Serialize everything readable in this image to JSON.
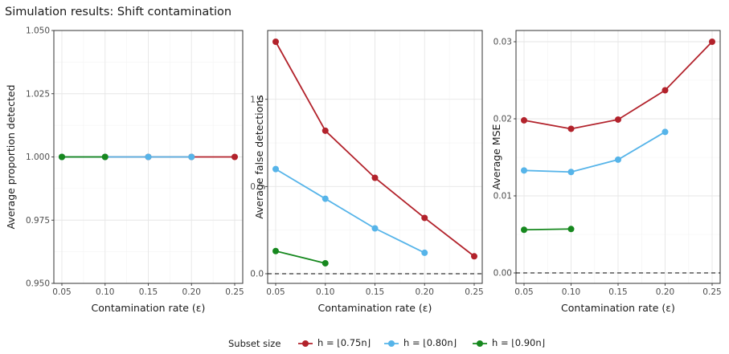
{
  "figure": {
    "title": "Simulation results: Shift contamination",
    "legend": {
      "title": "Subset size",
      "position": "bottom",
      "entries": [
        {
          "label": "h = ⌊0.75n⌋",
          "color": "#B2222B"
        },
        {
          "label": "h = ⌊0.80n⌋",
          "color": "#56B4E9"
        },
        {
          "label": "h = ⌊0.90n⌋",
          "color": "#16881E"
        }
      ]
    }
  },
  "chart_data": [
    {
      "type": "line",
      "xlabel": "Contamination rate (ε)",
      "ylabel": "Average proportion detected",
      "xlim": [
        0.05,
        0.25
      ],
      "ylim": [
        0.95,
        1.05
      ],
      "xticks": [
        0.05,
        0.1,
        0.15,
        0.2,
        0.25
      ],
      "xtick_labels": [
        "0.05",
        "0.10",
        "0.15",
        "0.20",
        "0.25"
      ],
      "yticks": [
        0.95,
        0.975,
        1.0,
        1.025,
        1.05
      ],
      "ytick_labels": [
        "0.950",
        "0.975",
        "1.000",
        "1.025",
        "1.050"
      ],
      "reference_line": null,
      "grid": true,
      "series": [
        {
          "name": "h = ⌊0.75n⌋",
          "color": "#B2222B",
          "x": [
            0.05,
            0.1,
            0.15,
            0.2,
            0.25
          ],
          "y": [
            1.0,
            1.0,
            1.0,
            1.0,
            1.0
          ]
        },
        {
          "name": "h = ⌊0.80n⌋",
          "color": "#56B4E9",
          "x": [
            0.05,
            0.1,
            0.15,
            0.2
          ],
          "y": [
            1.0,
            1.0,
            1.0,
            1.0
          ]
        },
        {
          "name": "h = ⌊0.90n⌋",
          "color": "#16881E",
          "x": [
            0.05,
            0.1
          ],
          "y": [
            1.0,
            1.0
          ]
        }
      ]
    },
    {
      "type": "line",
      "xlabel": "Contamination rate (ε)",
      "ylabel": "Average false detections",
      "xlim": [
        0.05,
        0.25
      ],
      "ylim": [
        0,
        1.33
      ],
      "xticks": [
        0.05,
        0.1,
        0.15,
        0.2,
        0.25
      ],
      "xtick_labels": [
        "0.05",
        "0.10",
        "0.15",
        "0.20",
        "0.25"
      ],
      "yticks": [
        0.0,
        0.5,
        1.0
      ],
      "ytick_labels": [
        "0.0",
        "0.5",
        "1.0"
      ],
      "reference_line": 0,
      "grid": true,
      "series": [
        {
          "name": "h = ⌊0.75n⌋",
          "color": "#B2222B",
          "x": [
            0.05,
            0.1,
            0.15,
            0.2,
            0.25
          ],
          "y": [
            1.33,
            0.82,
            0.55,
            0.32,
            0.1
          ]
        },
        {
          "name": "h = ⌊0.80n⌋",
          "color": "#56B4E9",
          "x": [
            0.05,
            0.1,
            0.15,
            0.2
          ],
          "y": [
            0.6,
            0.43,
            0.26,
            0.12
          ]
        },
        {
          "name": "h = ⌊0.90n⌋",
          "color": "#16881E",
          "x": [
            0.05,
            0.1
          ],
          "y": [
            0.13,
            0.06
          ]
        }
      ]
    },
    {
      "type": "line",
      "xlabel": "Contamination rate (ε)",
      "ylabel": "Average MSE",
      "xlim": [
        0.05,
        0.25
      ],
      "ylim": [
        0,
        0.03
      ],
      "xticks": [
        0.05,
        0.1,
        0.15,
        0.2,
        0.25
      ],
      "xtick_labels": [
        "0.05",
        "0.10",
        "0.15",
        "0.20",
        "0.25"
      ],
      "yticks": [
        0.0,
        0.01,
        0.02,
        0.03
      ],
      "ytick_labels": [
        "0.00",
        "0.01",
        "0.02",
        "0.03"
      ],
      "reference_line": 0,
      "grid": true,
      "series": [
        {
          "name": "h = ⌊0.75n⌋",
          "color": "#B2222B",
          "x": [
            0.05,
            0.1,
            0.15,
            0.2,
            0.25
          ],
          "y": [
            0.0198,
            0.0187,
            0.0199,
            0.0237,
            0.03
          ]
        },
        {
          "name": "h = ⌊0.80n⌋",
          "color": "#56B4E9",
          "x": [
            0.05,
            0.1,
            0.15,
            0.2
          ],
          "y": [
            0.0133,
            0.0131,
            0.0147,
            0.0183
          ]
        },
        {
          "name": "h = ⌊0.90n⌋",
          "color": "#16881E",
          "x": [
            0.05,
            0.1
          ],
          "y": [
            0.0056,
            0.0057
          ]
        }
      ]
    }
  ]
}
